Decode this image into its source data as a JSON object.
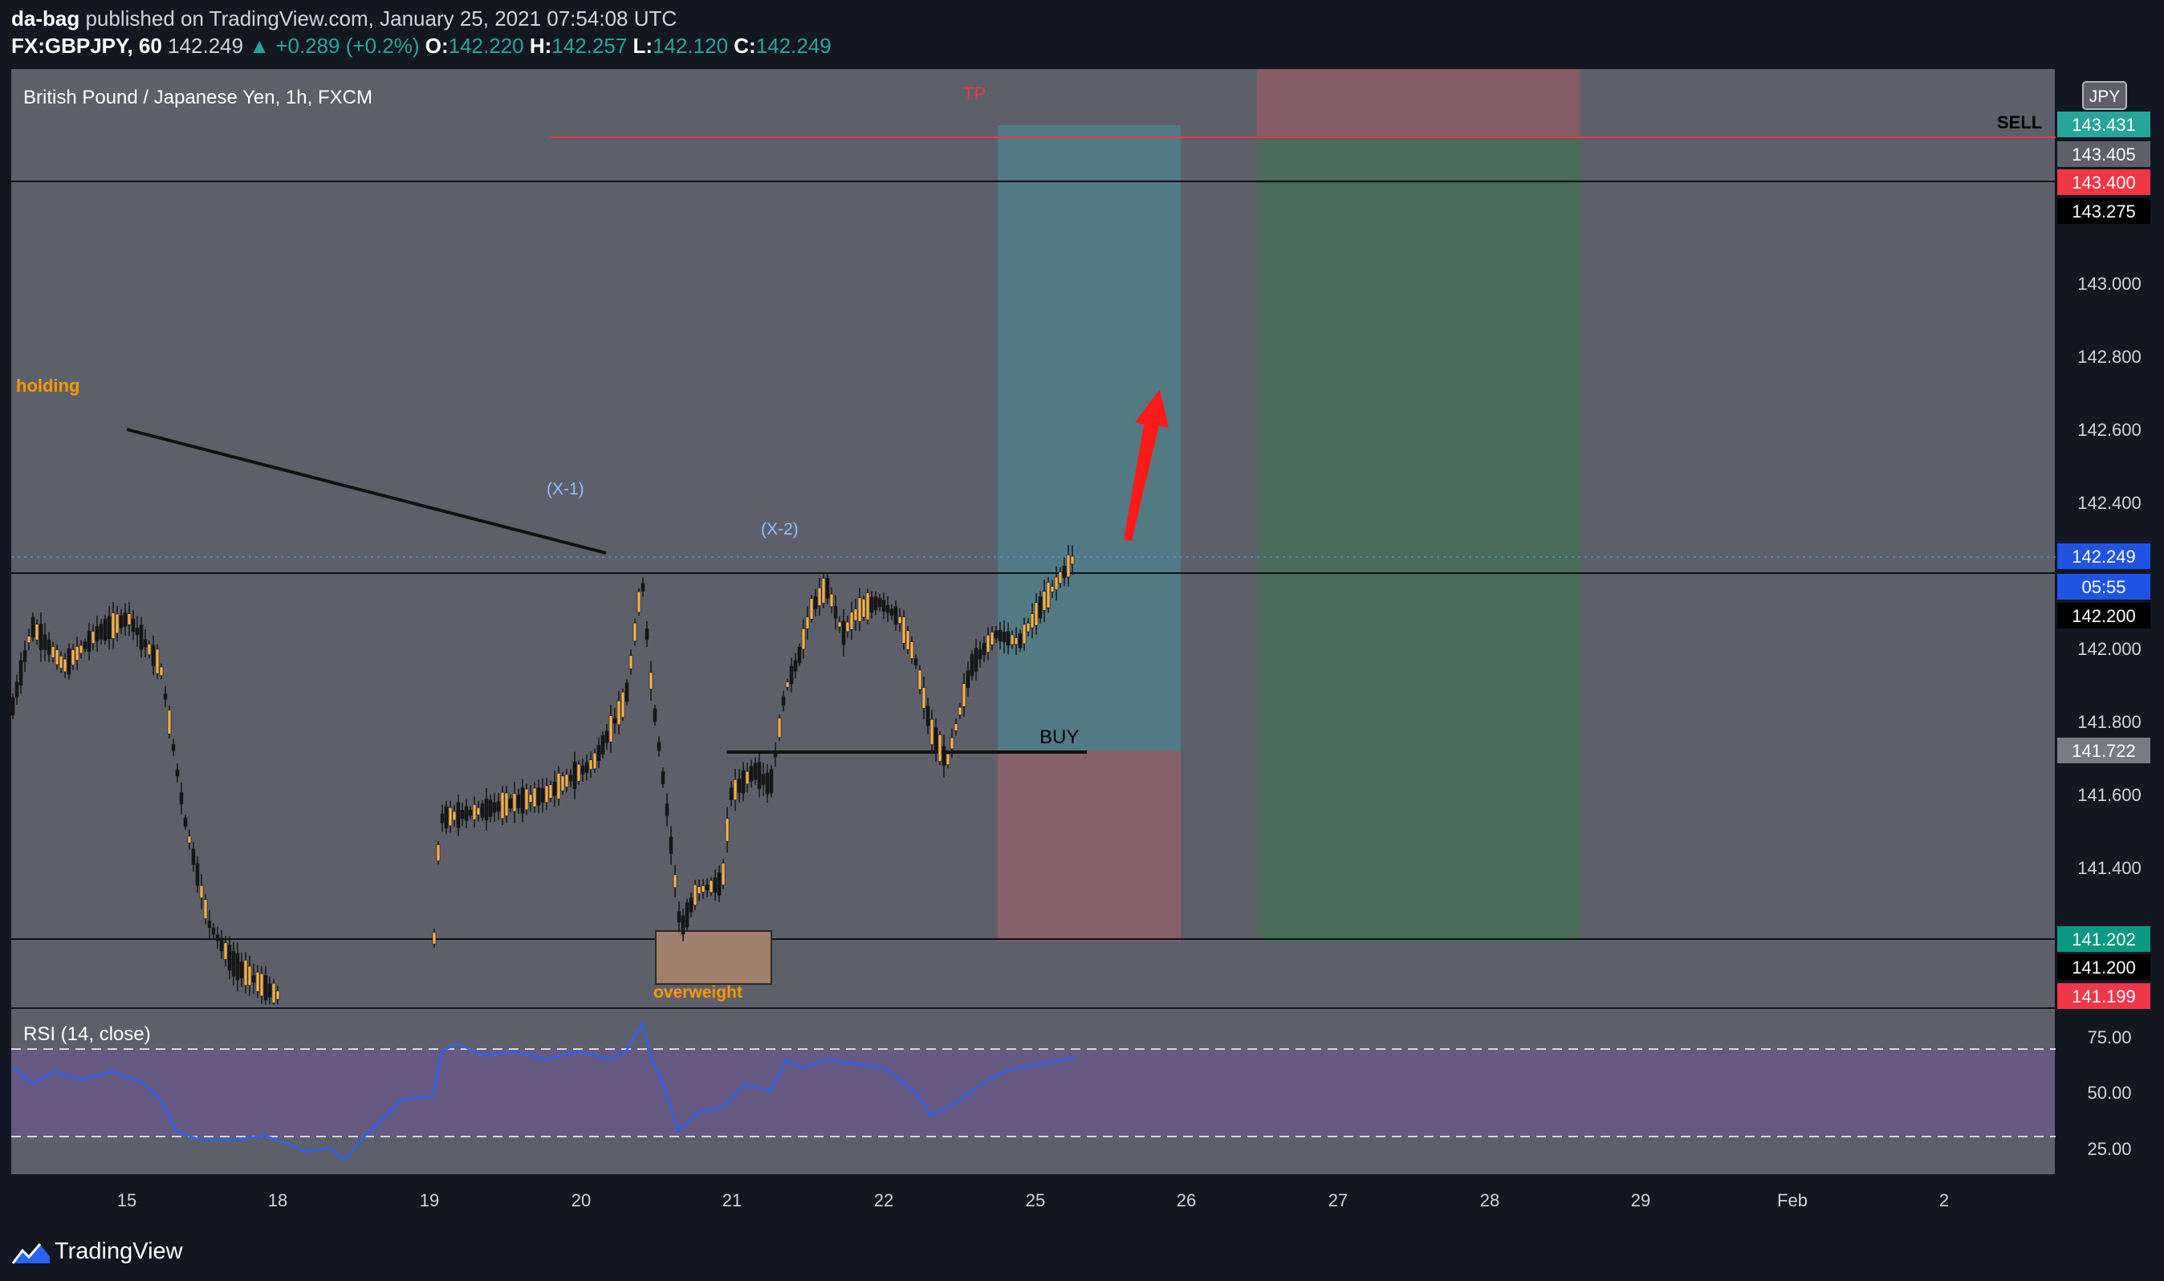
{
  "header": {
    "publisher": "da-bag",
    "published_text": "published on TradingView.com, January 25, 2021 07:54:08 UTC",
    "symbol": "FX:GBPJPY, 60",
    "last": "142.249",
    "change": "▲ +0.289 (+0.2%)",
    "o_label": "O:",
    "o_value": "142.220",
    "h_label": "H:",
    "h_value": "142.257",
    "l_label": "L:",
    "l_value": "142.120",
    "c_label": "C:",
    "c_value": "142.249"
  },
  "chart": {
    "title": "British Pound / Japanese Yen, 1h, FXCM",
    "currency_button": "JPY",
    "price_axis": [
      "143.000",
      "142.800",
      "142.600",
      "142.400",
      "142.000",
      "141.800",
      "141.600",
      "141.400"
    ],
    "price_tags": [
      {
        "text": "143.431",
        "bg": "#26a69a",
        "fg": "#ffffff"
      },
      {
        "text": "143.405",
        "bg": "#5d606b",
        "fg": "#ffffff"
      },
      {
        "text": "143.400",
        "bg": "#f23645",
        "fg": "#ffffff"
      },
      {
        "text": "143.275",
        "bg": "#000000",
        "fg": "#ffffff"
      },
      {
        "text": "142.249",
        "bg": "#1e53e5",
        "fg": "#ffffff"
      },
      {
        "text": "05:55",
        "bg": "#1e53e5",
        "fg": "#ffffff"
      },
      {
        "text": "142.200",
        "bg": "#000000",
        "fg": "#ffffff"
      },
      {
        "text": "141.722",
        "bg": "#787b86",
        "fg": "#ffffff"
      },
      {
        "text": "141.202",
        "bg": "#089981",
        "fg": "#ffffff"
      },
      {
        "text": "141.200",
        "bg": "#000000",
        "fg": "#ffffff"
      },
      {
        "text": "141.199",
        "bg": "#f23645",
        "fg": "#ffffff"
      }
    ],
    "time_axis": [
      "15",
      "18",
      "19",
      "20",
      "21",
      "22",
      "25",
      "26",
      "27",
      "28",
      "29",
      "Feb",
      "2"
    ],
    "annotations": {
      "holding": "holding",
      "x1": "(X-1)",
      "x2": "(X-2)",
      "tp": "TP",
      "sell": "SELL",
      "buy": "BUY",
      "overweight": "overweight"
    },
    "rsi": {
      "label": "RSI (14, close)",
      "axis": [
        "75.00",
        "50.00",
        "25.00"
      ]
    },
    "colors": {
      "background": "#5d606b",
      "candle_up": "#f7b14a",
      "candle_down": "#161616",
      "rsi_line": "#2962ff",
      "tp_line": "#f23645",
      "annotation_orange": "#ff9800",
      "annotation_blue": "#90bff9"
    }
  },
  "footer": {
    "brand": "TradingView"
  }
}
